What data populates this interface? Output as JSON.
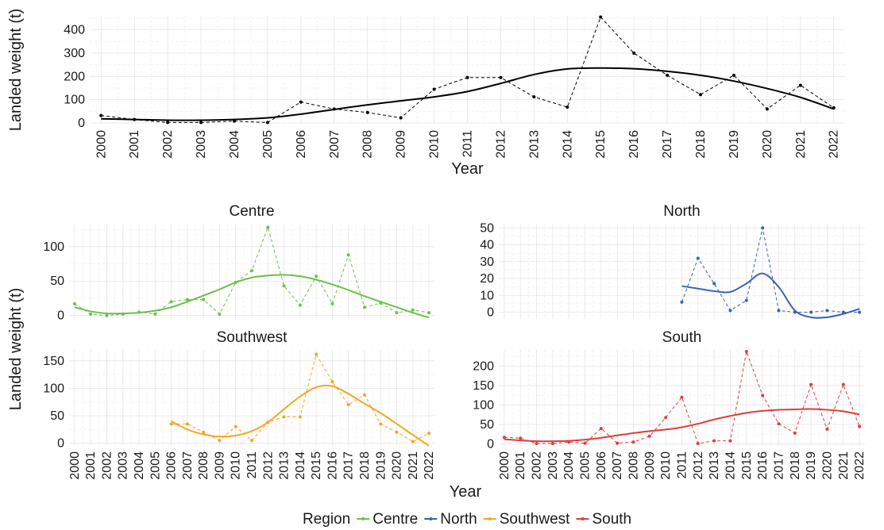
{
  "chart_data": [
    {
      "type": "line",
      "title": "",
      "xlabel": "Year",
      "ylabel": "Landed weight (t)",
      "x": [
        2000,
        2001,
        2002,
        2003,
        2004,
        2005,
        2006,
        2007,
        2008,
        2009,
        2010,
        2011,
        2012,
        2013,
        2014,
        2015,
        2016,
        2017,
        2018,
        2019,
        2020,
        2021,
        2022
      ],
      "xlim": [
        2000,
        2022
      ],
      "ylim": [
        0,
        460
      ],
      "yticks": [
        0,
        100,
        200,
        300,
        400
      ],
      "series": [
        {
          "kind": "observed",
          "style": "dashed-points",
          "color": "#000000",
          "x": [
            2000,
            2001,
            2002,
            2003,
            2004,
            2005,
            2006,
            2007,
            2008,
            2009,
            2010,
            2011,
            2012,
            2013,
            2014,
            2015,
            2016,
            2017,
            2018,
            2019,
            2020,
            2021,
            2022
          ],
          "values": [
            32,
            15,
            2,
            2,
            8,
            2,
            90,
            60,
            45,
            22,
            145,
            195,
            195,
            112,
            68,
            455,
            300,
            205,
            122,
            205,
            60,
            162,
            65
          ]
        },
        {
          "kind": "smoothed",
          "style": "solid",
          "color": "#000000",
          "x": [
            2000,
            2001,
            2002,
            2003,
            2004,
            2005,
            2006,
            2007,
            2008,
            2009,
            2010,
            2011,
            2012,
            2013,
            2014,
            2015,
            2016,
            2017,
            2018,
            2019,
            2020,
            2021,
            2022
          ],
          "values": [
            18,
            15,
            12,
            12,
            15,
            22,
            38,
            58,
            78,
            95,
            112,
            135,
            170,
            208,
            232,
            236,
            233,
            222,
            205,
            180,
            148,
            110,
            60
          ]
        }
      ]
    },
    {
      "type": "line",
      "title": "Centre",
      "xlabel": "",
      "ylabel": "Landed weight (t)",
      "xlim": [
        2000,
        2022
      ],
      "ylim": [
        -5,
        132
      ],
      "yticks": [
        0,
        50,
        100
      ],
      "series": [
        {
          "name": "Centre",
          "kind": "observed",
          "style": "dashed-points",
          "color": "#6dbf4b",
          "x": [
            2000,
            2001,
            2002,
            2003,
            2004,
            2005,
            2006,
            2007,
            2008,
            2009,
            2010,
            2011,
            2012,
            2013,
            2014,
            2015,
            2016,
            2017,
            2018,
            2019,
            2020,
            2021,
            2022
          ],
          "values": [
            17,
            2,
            0,
            2,
            5,
            2,
            20,
            23,
            23,
            2,
            48,
            65,
            128,
            43,
            15,
            57,
            17,
            88,
            12,
            18,
            4,
            8,
            4
          ]
        },
        {
          "name": "Centre",
          "kind": "smoothed",
          "style": "solid",
          "color": "#6dbf4b",
          "x": [
            2000,
            2001,
            2002,
            2003,
            2004,
            2005,
            2006,
            2007,
            2008,
            2009,
            2010,
            2011,
            2012,
            2013,
            2014,
            2015,
            2016,
            2017,
            2018,
            2019,
            2020,
            2021,
            2022
          ],
          "values": [
            12,
            6,
            3,
            3,
            4,
            7,
            12,
            20,
            29,
            38,
            48,
            55,
            58,
            59,
            57,
            52,
            45,
            37,
            28,
            20,
            12,
            4,
            -3
          ]
        }
      ]
    },
    {
      "type": "line",
      "title": "North",
      "xlabel": "",
      "ylabel": "",
      "xlim": [
        2000,
        2022
      ],
      "ylim": [
        -4,
        52
      ],
      "yticks": [
        0,
        10,
        20,
        30,
        40,
        50
      ],
      "series": [
        {
          "name": "North",
          "kind": "observed",
          "style": "dashed-points",
          "color": "#3a63b0",
          "x": [
            2011,
            2012,
            2013,
            2014,
            2015,
            2016,
            2017,
            2018,
            2019,
            2020,
            2021,
            2022
          ],
          "values": [
            6,
            32,
            17,
            1,
            7,
            50,
            1,
            0,
            0,
            1,
            0,
            0
          ]
        },
        {
          "name": "North",
          "kind": "smoothed",
          "style": "solid",
          "color": "#3a63b0",
          "x": [
            2011,
            2012,
            2013,
            2014,
            2015,
            2016,
            2017,
            2018,
            2019,
            2020,
            2021,
            2022
          ],
          "values": [
            15.5,
            14,
            12.5,
            12,
            17,
            23,
            15,
            1,
            -3,
            -3,
            -1,
            2
          ]
        }
      ]
    },
    {
      "type": "line",
      "title": "Southwest",
      "xlabel": "",
      "ylabel": "",
      "xlim": [
        2000,
        2022
      ],
      "ylim": [
        -5,
        170
      ],
      "yticks": [
        0,
        50,
        100,
        150
      ],
      "series": [
        {
          "name": "Southwest",
          "kind": "observed",
          "style": "dashed-points",
          "color": "#f5a623",
          "x": [
            2006,
            2007,
            2008,
            2009,
            2010,
            2011,
            2012,
            2013,
            2014,
            2015,
            2016,
            2017,
            2018,
            2019,
            2020,
            2021,
            2022
          ],
          "values": [
            35,
            35,
            20,
            5,
            30,
            5,
            38,
            48,
            48,
            162,
            112,
            70,
            88,
            35,
            20,
            3,
            18
          ]
        },
        {
          "name": "Southwest",
          "kind": "smoothed",
          "style": "solid",
          "color": "#f5a623",
          "x": [
            2006,
            2007,
            2008,
            2009,
            2010,
            2011,
            2012,
            2013,
            2014,
            2015,
            2016,
            2017,
            2018,
            2019,
            2020,
            2021,
            2022
          ],
          "values": [
            40,
            25,
            16,
            12,
            14,
            22,
            38,
            62,
            85,
            102,
            104,
            90,
            72,
            55,
            35,
            15,
            -5
          ]
        }
      ]
    },
    {
      "type": "line",
      "title": "South",
      "xlabel": "Year",
      "ylabel": "",
      "x": [
        2000,
        2001,
        2002,
        2003,
        2004,
        2005,
        2006,
        2007,
        2008,
        2009,
        2010,
        2011,
        2012,
        2013,
        2014,
        2015,
        2016,
        2017,
        2018,
        2019,
        2020,
        2021,
        2022
      ],
      "xlim": [
        2000,
        2022
      ],
      "ylim": [
        -5,
        242
      ],
      "yticks": [
        0,
        50,
        100,
        150,
        200
      ],
      "series": [
        {
          "name": "South",
          "kind": "observed",
          "style": "dashed-points",
          "color": "#e03c3c",
          "x": [
            2000,
            2001,
            2002,
            2003,
            2004,
            2005,
            2006,
            2007,
            2008,
            2009,
            2010,
            2011,
            2012,
            2013,
            2014,
            2015,
            2016,
            2017,
            2018,
            2019,
            2020,
            2021,
            2022
          ],
          "values": [
            17,
            15,
            1,
            1,
            5,
            2,
            40,
            2,
            5,
            20,
            68,
            120,
            1,
            8,
            8,
            238,
            125,
            52,
            28,
            153,
            38,
            153,
            45
          ]
        },
        {
          "name": "South",
          "kind": "smoothed",
          "style": "solid",
          "color": "#e03c3c",
          "x": [
            2000,
            2001,
            2002,
            2003,
            2004,
            2005,
            2006,
            2007,
            2008,
            2009,
            2010,
            2011,
            2012,
            2013,
            2014,
            2015,
            2016,
            2017,
            2018,
            2019,
            2020,
            2021,
            2022
          ],
          "values": [
            12,
            9,
            7,
            7,
            8,
            11,
            16,
            22,
            28,
            33,
            37,
            43,
            52,
            63,
            72,
            80,
            85,
            88,
            89,
            90,
            88,
            84,
            76
          ]
        }
      ]
    }
  ],
  "legend": {
    "title": "Region",
    "placement": "bottom",
    "items": [
      {
        "label": "Centre",
        "color": "#6dbf4b"
      },
      {
        "label": "North",
        "color": "#3a63b0"
      },
      {
        "label": "Southwest",
        "color": "#f5a623"
      },
      {
        "label": "South",
        "color": "#e03c3c"
      }
    ]
  }
}
